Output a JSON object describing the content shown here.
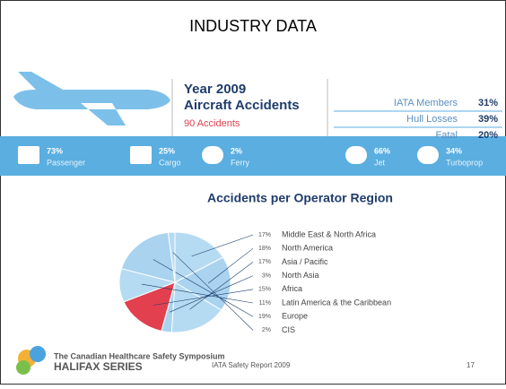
{
  "header": {
    "title": "INDUSTRY DATA"
  },
  "summary": {
    "year": "Year 2009",
    "heading": "Aircraft Accidents",
    "total": "90 Accidents"
  },
  "table": {
    "rows": [
      [
        "IATA Members",
        "31%"
      ],
      [
        "Hull Losses",
        "39%"
      ],
      [
        "Fatal",
        "20%"
      ]
    ]
  },
  "stats": [
    {
      "value": "73%",
      "label": "Passenger"
    },
    {
      "value": "25%",
      "label": "Cargo"
    },
    {
      "value": "2%",
      "label": "Ferry"
    },
    {
      "value": "66%",
      "label": "Jet"
    },
    {
      "value": "34%",
      "label": "Turboprop"
    }
  ],
  "chart_data": {
    "type": "pie",
    "title": "Accidents per Operator Region",
    "categories": [
      "Middle East & North Africa",
      "North America",
      "Asia / Pacific",
      "North Asia",
      "Africa",
      "Latin America & the Caribbean",
      "Europe",
      "CIS"
    ],
    "values": [
      17,
      18,
      17,
      3,
      15,
      11,
      19,
      2
    ],
    "value_labels": [
      "17%",
      "18%",
      "17%",
      "3%",
      "15%",
      "11%",
      "19%",
      "2%"
    ],
    "colors": [
      "#b5dbf2",
      "#a9d3ef",
      "#b5dbf2",
      "#a9d3ef",
      "#e2404f",
      "#b5dbf2",
      "#a9d3ef",
      "#b5dbf2"
    ]
  },
  "footer": {
    "org": "The Canadian Healthcare Safety Symposium",
    "series": "HALIFAX SERIES",
    "source": "IATA Safety Report 2009",
    "page": "17"
  }
}
